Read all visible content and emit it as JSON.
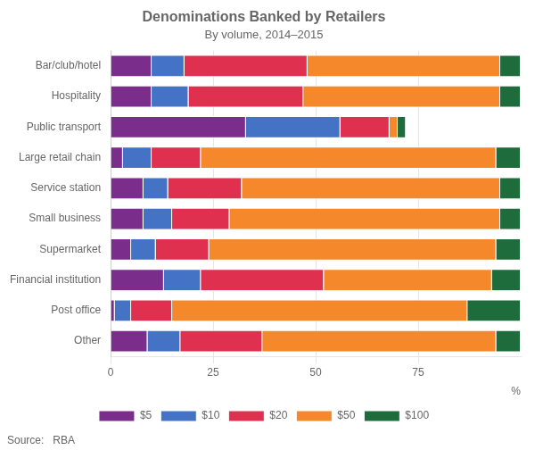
{
  "chart_data": {
    "type": "bar",
    "title": "Denominations Banked by Retailers",
    "subtitle": "By volume, 2014–2015",
    "xlabel": "%",
    "annotations": [
      "Source:   RBA"
    ],
    "orientation": "horizontal",
    "stacked": true,
    "categories": [
      "Bar/club/hotel",
      "Hospitality",
      "Public transport",
      "Large retail chain",
      "Service station",
      "Small business",
      "Supermarket",
      "Financial institution",
      "Post office",
      "Other"
    ],
    "series": [
      {
        "name": "$5",
        "color": "#7B2D8B",
        "values": [
          10,
          10,
          33,
          3,
          8,
          8,
          5,
          13,
          1,
          9
        ]
      },
      {
        "name": "$10",
        "color": "#4472C4",
        "values": [
          8,
          9,
          23,
          7,
          6,
          7,
          6,
          9,
          4,
          8
        ]
      },
      {
        "name": "$20",
        "color": "#E03050",
        "values": [
          30,
          28,
          12,
          12,
          18,
          14,
          13,
          30,
          10,
          20
        ]
      },
      {
        "name": "$50",
        "color": "#F5882A",
        "values": [
          47,
          48,
          2,
          72,
          63,
          66,
          70,
          41,
          72,
          57
        ]
      },
      {
        "name": "$100",
        "color": "#1E6B3C",
        "values": [
          5,
          5,
          2,
          6,
          5,
          5,
          6,
          7,
          13,
          6
        ]
      }
    ],
    "xlim": [
      0,
      100
    ],
    "xticks": [
      0,
      25,
      50,
      75
    ],
    "grid": true,
    "legend": "bottom"
  }
}
